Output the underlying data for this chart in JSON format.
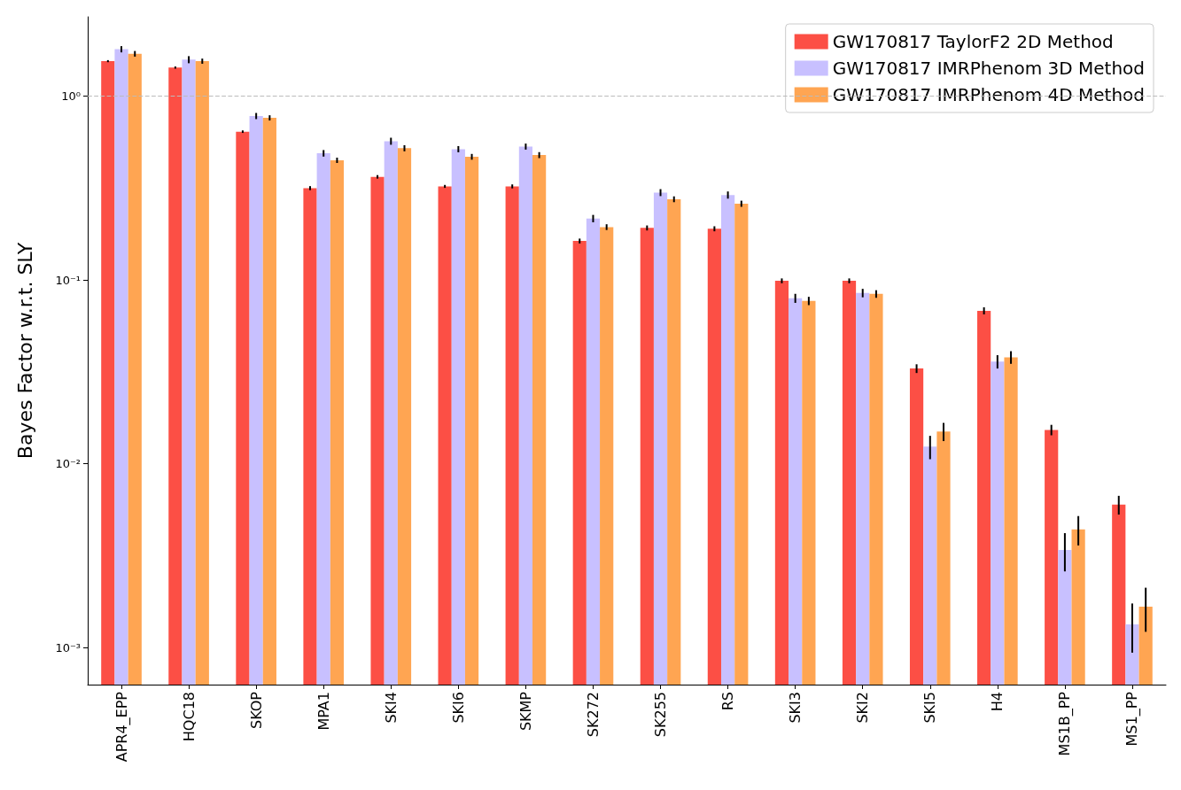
{
  "chart_data": {
    "type": "bar",
    "ylabel": "Bayes Factor w.r.t. SLY",
    "log": "y",
    "grid": false,
    "legend": "top right",
    "categories": [
      "APR4_EPP",
      "HQC18",
      "SKOP",
      "MPA1",
      "SKI4",
      "SKI6",
      "SKMP",
      "SK272",
      "SK255",
      "RS",
      "SKI3",
      "SKI2",
      "SKI5",
      "H4",
      "MS1B_PP",
      "MS1_PP"
    ],
    "ylim": [
      0.00063,
      2.7
    ],
    "yticks": [
      {
        "value": 0.001,
        "label": "10⁻³"
      },
      {
        "value": 0.01,
        "label": "10⁻²"
      },
      {
        "value": 0.1,
        "label": "10⁻¹"
      },
      {
        "value": 1,
        "label": "10⁰"
      }
    ],
    "ref_lines": [
      {
        "axis": "y",
        "value": 1,
        "color": "#bbbbbb",
        "line_style": "dashed"
      }
    ],
    "series": [
      {
        "name": "GW170817 TaylorF2 2D Method",
        "color": "#fc4f45",
        "values": [
          1.55,
          1.43,
          0.641,
          0.316,
          0.364,
          0.323,
          0.323,
          0.163,
          0.192,
          0.19,
          0.099,
          0.099,
          0.033,
          0.068,
          0.0153,
          0.006
        ],
        "errors": [
          0.02,
          0.02,
          0.01,
          0.008,
          0.008,
          0.006,
          0.008,
          0.005,
          0.006,
          0.006,
          0.003,
          0.003,
          0.0018,
          0.003,
          0.001,
          0.0007
        ]
      },
      {
        "name": "GW170817 IMRPhenom 3D Method",
        "color": "#c8c0ff",
        "values": [
          1.8,
          1.58,
          0.78,
          0.489,
          0.569,
          0.515,
          0.532,
          0.216,
          0.299,
          0.29,
          0.0796,
          0.085,
          0.0124,
          0.036,
          0.0034,
          0.00134
        ],
        "errors": [
          0.07,
          0.07,
          0.03,
          0.02,
          0.025,
          0.02,
          0.02,
          0.01,
          0.013,
          0.013,
          0.0045,
          0.0045,
          0.0018,
          0.003,
          0.0008,
          0.0004
        ]
      },
      {
        "name": "GW170817 IMRPhenom 4D Method",
        "color": "#ffa552",
        "values": [
          1.7,
          1.55,
          0.762,
          0.448,
          0.521,
          0.468,
          0.478,
          0.194,
          0.275,
          0.26,
          0.077,
          0.084,
          0.015,
          0.038,
          0.0044,
          0.00167
        ],
        "errors": [
          0.06,
          0.05,
          0.025,
          0.015,
          0.02,
          0.017,
          0.018,
          0.007,
          0.01,
          0.01,
          0.004,
          0.004,
          0.0017,
          0.003,
          0.0008,
          0.00045
        ]
      }
    ]
  }
}
